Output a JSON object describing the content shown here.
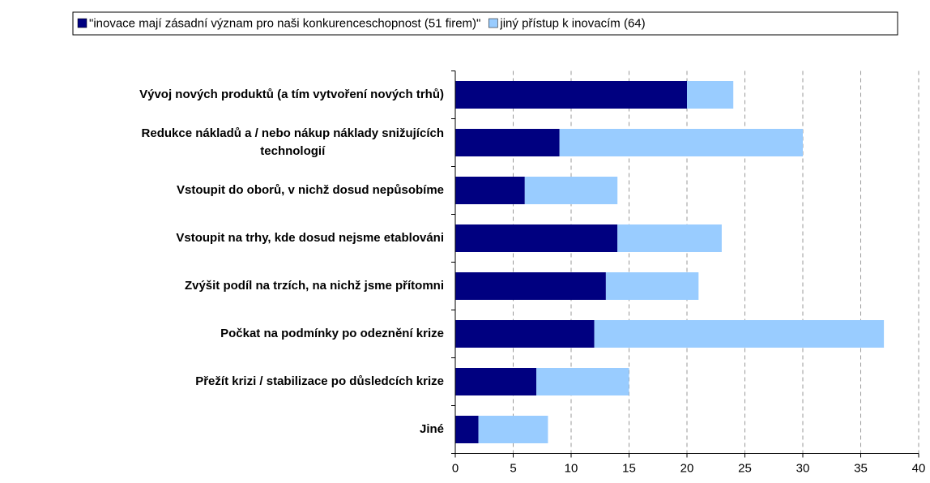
{
  "chart_data": {
    "type": "stacked_barh",
    "categories": [
      "Vývoj nových produktů (a tím vytvoření nových trhů)",
      "Redukce nákladů a / nebo nákup náklady snižujících\ntechnologií",
      "Vstoupit do oborů, v nichž dosud nepůsobíme",
      "Vstoupit na trhy, kde dosud nejsme etablováni",
      "Zvýšit podíl na trzích, na nichž jsme přítomni",
      "Počkat na podmínky po odeznění krize",
      "Přežít krizi / stabilizace po důsledcích krize",
      "Jiné"
    ],
    "series": [
      {
        "name": "\"inovace mají zásadní význam pro naši konkurenceschopnost (51 firem)\"",
        "color": "#000080",
        "values": [
          20,
          9,
          6,
          14,
          13,
          12,
          7,
          2
        ]
      },
      {
        "name": "jiný přístup k inovacím (64)",
        "color": "#99ccff",
        "values": [
          4,
          21,
          8,
          9,
          8,
          25,
          8,
          6
        ]
      }
    ],
    "xlim": [
      0,
      40
    ],
    "xticks": [
      0,
      5,
      10,
      15,
      20,
      25,
      30,
      35,
      40
    ],
    "grid": true,
    "legend": "top"
  }
}
